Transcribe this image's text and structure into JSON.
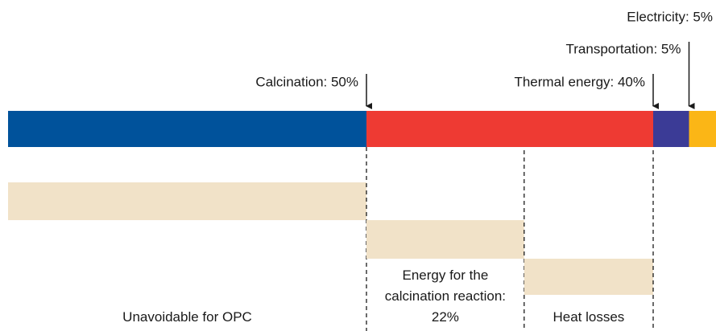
{
  "chart_data": {
    "type": "stacked-bar",
    "xlim": [
      0,
      100
    ],
    "series": [
      {
        "color": "#00529b",
        "values": [
          50
        ],
        "value_labels": [
          "Calcination: 50%"
        ]
      },
      {
        "color": "#ee3a33",
        "values": [
          40
        ],
        "value_labels": [
          "Thermal energy: 40%"
        ]
      },
      {
        "color": "#3b3b96",
        "values": [
          5
        ],
        "value_labels": [
          "Transportation: 5%"
        ]
      },
      {
        "color": "#fbb616",
        "values": [
          5
        ],
        "value_labels": [
          "Electricity: 5%"
        ]
      }
    ],
    "breakdown": {
      "color": "#f1e2c8",
      "values": [
        50,
        22,
        18
      ],
      "labels": [
        "Unavoidable for OPC",
        "Energy for the calcination reaction: 22%",
        "Heat losses"
      ]
    }
  }
}
